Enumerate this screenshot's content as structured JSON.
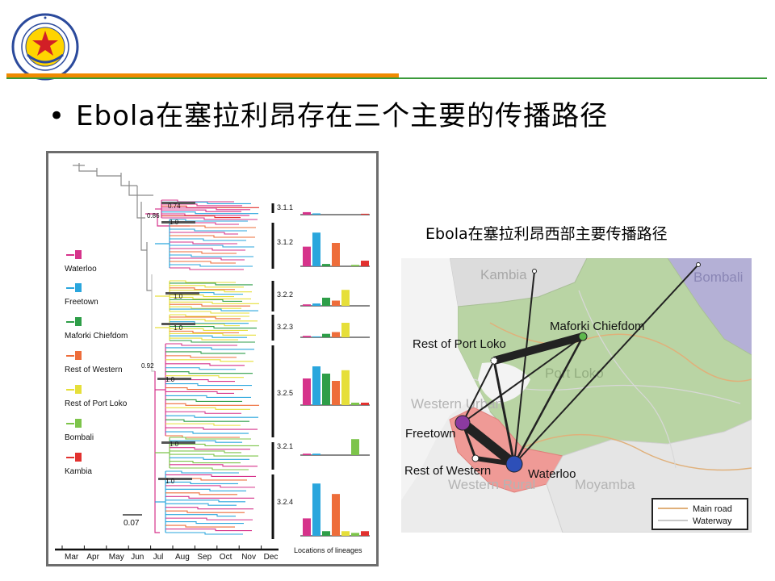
{
  "slide": {
    "bullet": "•",
    "title": "Ebola在塞拉利昂存在三个主要的传播路径"
  },
  "tree": {
    "legend": [
      {
        "name": "Waterloo",
        "color": "#d6338b"
      },
      {
        "name": "Freetown",
        "color": "#2aa6dd"
      },
      {
        "name": "Maforki Chiefdom",
        "color": "#2e9e48"
      },
      {
        "name": "Rest of Western",
        "color": "#ee6d3a"
      },
      {
        "name": "Rest of Port Loko",
        "color": "#e6df3a"
      },
      {
        "name": "Bombali",
        "color": "#7dc44a"
      },
      {
        "name": "Kambia",
        "color": "#e2312f"
      }
    ],
    "lineages": [
      {
        "label": "3.1.1",
        "values": [
          0.14,
          0.07,
          0,
          0,
          0,
          0,
          0.05
        ]
      },
      {
        "label": "3.1.2",
        "values": [
          0.42,
          0.72,
          0.05,
          0.5,
          0,
          0.03,
          0.12
        ]
      },
      {
        "label": "3.2.2",
        "values": [
          0.05,
          0.08,
          0.28,
          0.18,
          0.55,
          0,
          0
        ]
      },
      {
        "label": "3.2.3",
        "values": [
          0.05,
          0.03,
          0.12,
          0.18,
          0.5,
          0,
          0
        ]
      },
      {
        "label": "3.2.5",
        "values": [
          0.55,
          0.8,
          0.65,
          0.5,
          0.72,
          0.05,
          0.05
        ]
      },
      {
        "label": "3.2.1",
        "values": [
          0.05,
          0.05,
          0,
          0,
          0,
          0.55,
          0
        ]
      },
      {
        "label": "3.2.4",
        "values": [
          0.3,
          0.9,
          0.08,
          0.72,
          0.08,
          0.05,
          0.08
        ]
      }
    ],
    "support_values": [
      "0.74",
      "0.86",
      "1.0",
      "1.0",
      "1.0",
      "0.92",
      "1.0",
      "1.0",
      "1.0"
    ],
    "scale_bar": "0.07",
    "months": [
      "Mar",
      "Apr",
      "May",
      "Jun",
      "Jul",
      "Aug",
      "Sep",
      "Oct",
      "Nov",
      "Dec"
    ],
    "bar_axis_label": "Locations of lineages"
  },
  "map": {
    "title": "Ebola在塞拉利昂西部主要传播路径",
    "regions": [
      "Kambia",
      "Bombali",
      "Port Loko",
      "Western Urban",
      "Western Rural",
      "Moyamba"
    ],
    "nodes": [
      "Maforki Chiefdom",
      "Rest of Port Loko",
      "Freetown",
      "Rest of Western",
      "Waterloo"
    ],
    "legend": {
      "main_road": "Main road",
      "waterway": "Waterway"
    },
    "colors": {
      "port_loko": "#b9d4a4",
      "bombali": "#b4b0d6",
      "western": "#ef9a96",
      "kambia": "#dcdcdc",
      "maforki": "#5fb84d",
      "freetown": "#8b3aa0",
      "waterloo": "#2d4fb8",
      "edge": "#222222"
    }
  }
}
